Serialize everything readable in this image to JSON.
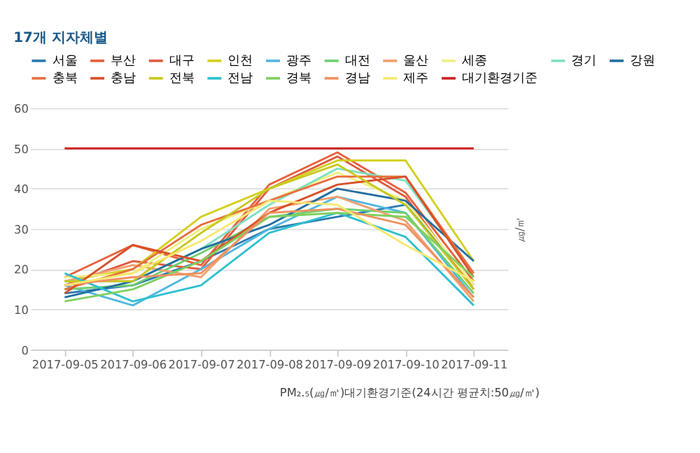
{
  "chart_data": {
    "type": "line",
    "title": "17개 지자체별",
    "categories": [
      "2017-09-05",
      "2017-09-06",
      "2017-09-07",
      "2017-09-08",
      "2017-09-09",
      "2017-09-10",
      "2017-09-11"
    ],
    "ylabel": "㎍/㎥",
    "ylim": [
      0,
      60
    ],
    "yticks": [
      0,
      10,
      20,
      30,
      40,
      50,
      60
    ],
    "grid": "y",
    "legend": "top",
    "marker": "none",
    "line_style": "solid",
    "annotations": [
      "PM₂.₅(㎍/㎥)대기환경기준(24시간 평균치:50㎍/㎥)"
    ],
    "series": [
      {
        "name": "서울",
        "color": "#2a7ab0",
        "values": [
          14,
          16,
          22,
          30,
          33,
          36,
          16
        ]
      },
      {
        "name": "부산",
        "color": "#e8603c",
        "values": [
          18,
          26,
          21,
          41,
          49,
          39,
          17
        ]
      },
      {
        "name": "대구",
        "color": "#e05a40",
        "values": [
          16,
          22,
          20,
          40,
          48,
          38,
          15
        ]
      },
      {
        "name": "인천",
        "color": "#d4d020",
        "values": [
          17,
          20,
          33,
          40,
          47,
          47,
          22
        ]
      },
      {
        "name": "광주",
        "color": "#50b8e0",
        "values": [
          16,
          11,
          20,
          30,
          38,
          34,
          13
        ]
      },
      {
        "name": "대전",
        "color": "#70d070",
        "values": [
          15,
          16,
          24,
          33,
          35,
          34,
          14
        ]
      },
      {
        "name": "울산",
        "color": "#f0a070",
        "values": [
          17,
          21,
          18,
          35,
          38,
          32,
          12
        ]
      },
      {
        "name": "세종",
        "color": "#f0f080",
        "values": [
          18,
          19,
          30,
          37,
          44,
          37,
          16
        ]
      },
      {
        "name": "경기",
        "color": "#80e0c0",
        "values": [
          17,
          17,
          25,
          36,
          45,
          42,
          19
        ]
      },
      {
        "name": "강원",
        "color": "#2070a0",
        "values": [
          13,
          17,
          25,
          31,
          40,
          37,
          22
        ]
      },
      {
        "name": "충북",
        "color": "#e87040",
        "values": [
          15,
          20,
          31,
          37,
          43,
          43,
          19
        ]
      },
      {
        "name": "충남",
        "color": "#d85028",
        "values": [
          14,
          26,
          22,
          34,
          41,
          43,
          18
        ]
      },
      {
        "name": "전북",
        "color": "#c8c820",
        "values": [
          17,
          17,
          29,
          40,
          46,
          36,
          15
        ]
      },
      {
        "name": "전남",
        "color": "#30c0d0",
        "values": [
          19,
          12,
          16,
          29,
          34,
          28,
          11
        ]
      },
      {
        "name": "경북",
        "color": "#80d060",
        "values": [
          12,
          15,
          22,
          33,
          34,
          33,
          18
        ]
      },
      {
        "name": "경남",
        "color": "#f09060",
        "values": [
          16,
          18,
          19,
          34,
          35,
          31,
          13
        ]
      },
      {
        "name": "제주",
        "color": "#f8e870",
        "values": [
          16,
          19,
          27,
          37,
          36,
          26,
          17
        ]
      },
      {
        "name": "대기환경기준",
        "color": "#d02020",
        "values": [
          50,
          50,
          50,
          50,
          50,
          50,
          50
        ]
      }
    ]
  }
}
